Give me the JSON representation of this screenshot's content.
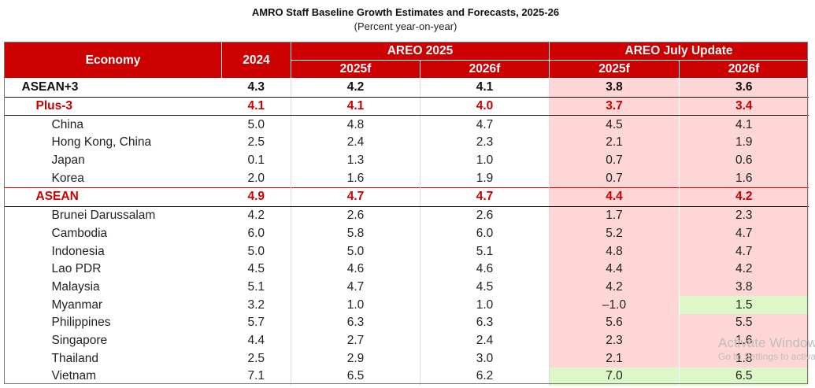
{
  "header": {
    "title": "AMRO Staff Baseline Growth Estimates and Forecasts, 2025-26",
    "subtitle": "(Percent year-on-year)"
  },
  "table": {
    "col_economy": "Economy",
    "col_2024": "2024",
    "group_areo": "AREO 2025",
    "group_update": "AREO July Update",
    "sub": [
      "2025f",
      "2026f",
      "2025f",
      "2026f"
    ],
    "rows": [
      {
        "name": "ASEAN+3",
        "level": 0,
        "values": [
          "4.3",
          "4.2",
          "4.1",
          "3.8",
          "3.6"
        ]
      },
      {
        "name": "Plus-3",
        "level": 1,
        "values": [
          "4.1",
          "4.1",
          "4.0",
          "3.7",
          "3.4"
        ]
      },
      {
        "name": "China",
        "level": 2,
        "values": [
          "5.0",
          "4.8",
          "4.7",
          "4.5",
          "4.1"
        ]
      },
      {
        "name": "Hong Kong, China",
        "level": 2,
        "values": [
          "2.5",
          "2.4",
          "2.3",
          "2.1",
          "1.9"
        ]
      },
      {
        "name": "Japan",
        "level": 2,
        "values": [
          "0.1",
          "1.3",
          "1.0",
          "0.7",
          "0.6"
        ]
      },
      {
        "name": "Korea",
        "level": 2,
        "values": [
          "2.0",
          "1.6",
          "1.9",
          "0.7",
          "1.6"
        ]
      },
      {
        "name": "ASEAN",
        "level": 1,
        "values": [
          "4.9",
          "4.7",
          "4.7",
          "4.4",
          "4.2"
        ]
      },
      {
        "name": "Brunei Darussalam",
        "level": 2,
        "values": [
          "4.2",
          "2.6",
          "2.6",
          "1.7",
          "2.3"
        ]
      },
      {
        "name": "Cambodia",
        "level": 2,
        "values": [
          "6.0",
          "5.8",
          "6.0",
          "5.2",
          "4.7"
        ]
      },
      {
        "name": "Indonesia",
        "level": 2,
        "values": [
          "5.0",
          "5.0",
          "5.1",
          "4.8",
          "4.7"
        ]
      },
      {
        "name": "Lao PDR",
        "level": 2,
        "values": [
          "4.5",
          "4.6",
          "4.6",
          "4.4",
          "4.2"
        ]
      },
      {
        "name": "Malaysia",
        "level": 2,
        "values": [
          "5.1",
          "4.7",
          "4.5",
          "4.2",
          "3.8"
        ]
      },
      {
        "name": "Myanmar",
        "level": 2,
        "values": [
          "3.2",
          "1.0",
          "1.0",
          "–1.0",
          "1.5"
        ],
        "green": [
          4
        ]
      },
      {
        "name": "Philippines",
        "level": 2,
        "values": [
          "5.7",
          "6.3",
          "6.3",
          "5.6",
          "5.5"
        ]
      },
      {
        "name": "Singapore",
        "level": 2,
        "values": [
          "4.4",
          "2.7",
          "2.4",
          "2.3",
          "1.6"
        ]
      },
      {
        "name": "Thailand",
        "level": 2,
        "values": [
          "2.5",
          "2.9",
          "3.0",
          "2.1",
          "1.8"
        ]
      },
      {
        "name": "Vietnam",
        "level": 2,
        "values": [
          "7.1",
          "6.5",
          "6.2",
          "7.0",
          "6.5"
        ],
        "green": [
          3,
          4
        ]
      }
    ]
  },
  "colors": {
    "header_red": "#cc0000",
    "update_pink": "#ffd6d6",
    "upgrade_green": "#ddf7c8",
    "aggregate_red_text": "#cc0000"
  },
  "watermark": {
    "line1": "Activate Windows",
    "line2": "Go to Settings to activate Windows."
  }
}
